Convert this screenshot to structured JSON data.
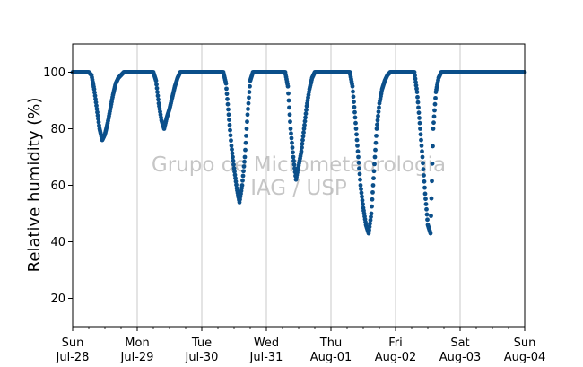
{
  "chart_data": {
    "type": "scatter",
    "title": "",
    "xlabel": "",
    "ylabel": "Relative humidity (%)",
    "ylim": [
      10,
      110
    ],
    "yticks": [
      20,
      40,
      60,
      80,
      100
    ],
    "xlim": [
      "2024-07-28",
      "2024-08-04"
    ],
    "xticks": [
      {
        "weekday": "Sun",
        "date": "Jul-28"
      },
      {
        "weekday": "Mon",
        "date": "Jul-29"
      },
      {
        "weekday": "Tue",
        "date": "Jul-30"
      },
      {
        "weekday": "Wed",
        "date": "Jul-31"
      },
      {
        "weekday": "Thu",
        "date": "Aug-01"
      },
      {
        "weekday": "Fri",
        "date": "Aug-02"
      },
      {
        "weekday": "Sat",
        "date": "Aug-03"
      },
      {
        "weekday": "Sun",
        "date": "Aug-04"
      }
    ],
    "grid": "vertical",
    "marker_color": "#0b4f8a",
    "watermark": [
      "Grupo de Micrometeorologia",
      "IAG / USP"
    ],
    "series": [
      {
        "name": "",
        "points": [
          [
            "2024-07-28 00:00",
            100
          ],
          [
            "2024-07-28 06:00",
            100
          ],
          [
            "2024-07-28 07:00",
            99
          ],
          [
            "2024-07-28 08:00",
            94
          ],
          [
            "2024-07-28 09:00",
            87
          ],
          [
            "2024-07-28 10:00",
            80
          ],
          [
            "2024-07-28 11:00",
            76
          ],
          [
            "2024-07-28 12:00",
            78
          ],
          [
            "2024-07-28 13:00",
            82
          ],
          [
            "2024-07-28 14:00",
            87
          ],
          [
            "2024-07-28 15:00",
            92
          ],
          [
            "2024-07-28 16:00",
            96
          ],
          [
            "2024-07-28 17:00",
            98
          ],
          [
            "2024-07-28 18:00",
            99
          ],
          [
            "2024-07-28 19:00",
            100
          ],
          [
            "2024-07-29 00:00",
            100
          ],
          [
            "2024-07-29 06:00",
            100
          ],
          [
            "2024-07-29 07:00",
            97
          ],
          [
            "2024-07-29 08:00",
            89
          ],
          [
            "2024-07-29 09:00",
            83
          ],
          [
            "2024-07-29 10:00",
            80
          ],
          [
            "2024-07-29 11:00",
            84
          ],
          [
            "2024-07-29 12:00",
            87
          ],
          [
            "2024-07-29 13:00",
            91
          ],
          [
            "2024-07-29 14:00",
            95
          ],
          [
            "2024-07-29 15:00",
            98
          ],
          [
            "2024-07-29 16:00",
            100
          ],
          [
            "2024-07-30 00:00",
            100
          ],
          [
            "2024-07-30 08:00",
            100
          ],
          [
            "2024-07-30 09:00",
            96
          ],
          [
            "2024-07-30 10:00",
            85
          ],
          [
            "2024-07-30 11:00",
            74
          ],
          [
            "2024-07-30 12:00",
            66
          ],
          [
            "2024-07-30 13:00",
            59
          ],
          [
            "2024-07-30 14:00",
            54
          ],
          [
            "2024-07-30 15:00",
            60
          ],
          [
            "2024-07-30 16:00",
            70
          ],
          [
            "2024-07-30 17:00",
            85
          ],
          [
            "2024-07-30 18:00",
            97
          ],
          [
            "2024-07-30 19:00",
            100
          ],
          [
            "2024-07-31 00:00",
            100
          ],
          [
            "2024-07-31 07:00",
            100
          ],
          [
            "2024-07-31 08:00",
            95
          ],
          [
            "2024-07-31 09:00",
            80
          ],
          [
            "2024-07-31 10:00",
            70
          ],
          [
            "2024-07-31 11:00",
            62
          ],
          [
            "2024-07-31 12:00",
            67
          ],
          [
            "2024-07-31 13:00",
            72
          ],
          [
            "2024-07-31 14:00",
            80
          ],
          [
            "2024-07-31 15:00",
            88
          ],
          [
            "2024-07-31 16:00",
            94
          ],
          [
            "2024-07-31 17:00",
            98
          ],
          [
            "2024-07-31 18:00",
            100
          ],
          [
            "2024-08-01 00:00",
            100
          ],
          [
            "2024-08-01 07:00",
            100
          ],
          [
            "2024-08-01 08:00",
            95
          ],
          [
            "2024-08-01 09:00",
            84
          ],
          [
            "2024-08-01 10:00",
            72
          ],
          [
            "2024-08-01 11:00",
            60
          ],
          [
            "2024-08-01 12:00",
            52
          ],
          [
            "2024-08-01 13:00",
            46
          ],
          [
            "2024-08-01 14:00",
            43
          ],
          [
            "2024-08-01 15:00",
            50
          ],
          [
            "2024-08-01 16:00",
            65
          ],
          [
            "2024-08-01 17:00",
            80
          ],
          [
            "2024-08-01 18:00",
            89
          ],
          [
            "2024-08-01 19:00",
            94
          ],
          [
            "2024-08-01 20:00",
            97
          ],
          [
            "2024-08-01 21:00",
            99
          ],
          [
            "2024-08-01 22:00",
            100
          ],
          [
            "2024-08-02 00:00",
            100
          ],
          [
            "2024-08-02 07:00",
            100
          ],
          [
            "2024-08-02 08:00",
            93
          ],
          [
            "2024-08-02 09:00",
            82
          ],
          [
            "2024-08-02 10:00",
            70
          ],
          [
            "2024-08-02 11:00",
            57
          ],
          [
            "2024-08-02 12:00",
            46
          ],
          [
            "2024-08-02 13:00",
            43
          ],
          [
            "2024-08-02 14:00",
            80
          ],
          [
            "2024-08-02 15:00",
            93
          ],
          [
            "2024-08-02 16:00",
            98
          ],
          [
            "2024-08-02 17:00",
            100
          ],
          [
            "2024-08-03 00:00",
            100
          ],
          [
            "2024-08-03 12:00",
            100
          ],
          [
            "2024-08-04 00:00",
            100
          ]
        ]
      }
    ]
  }
}
